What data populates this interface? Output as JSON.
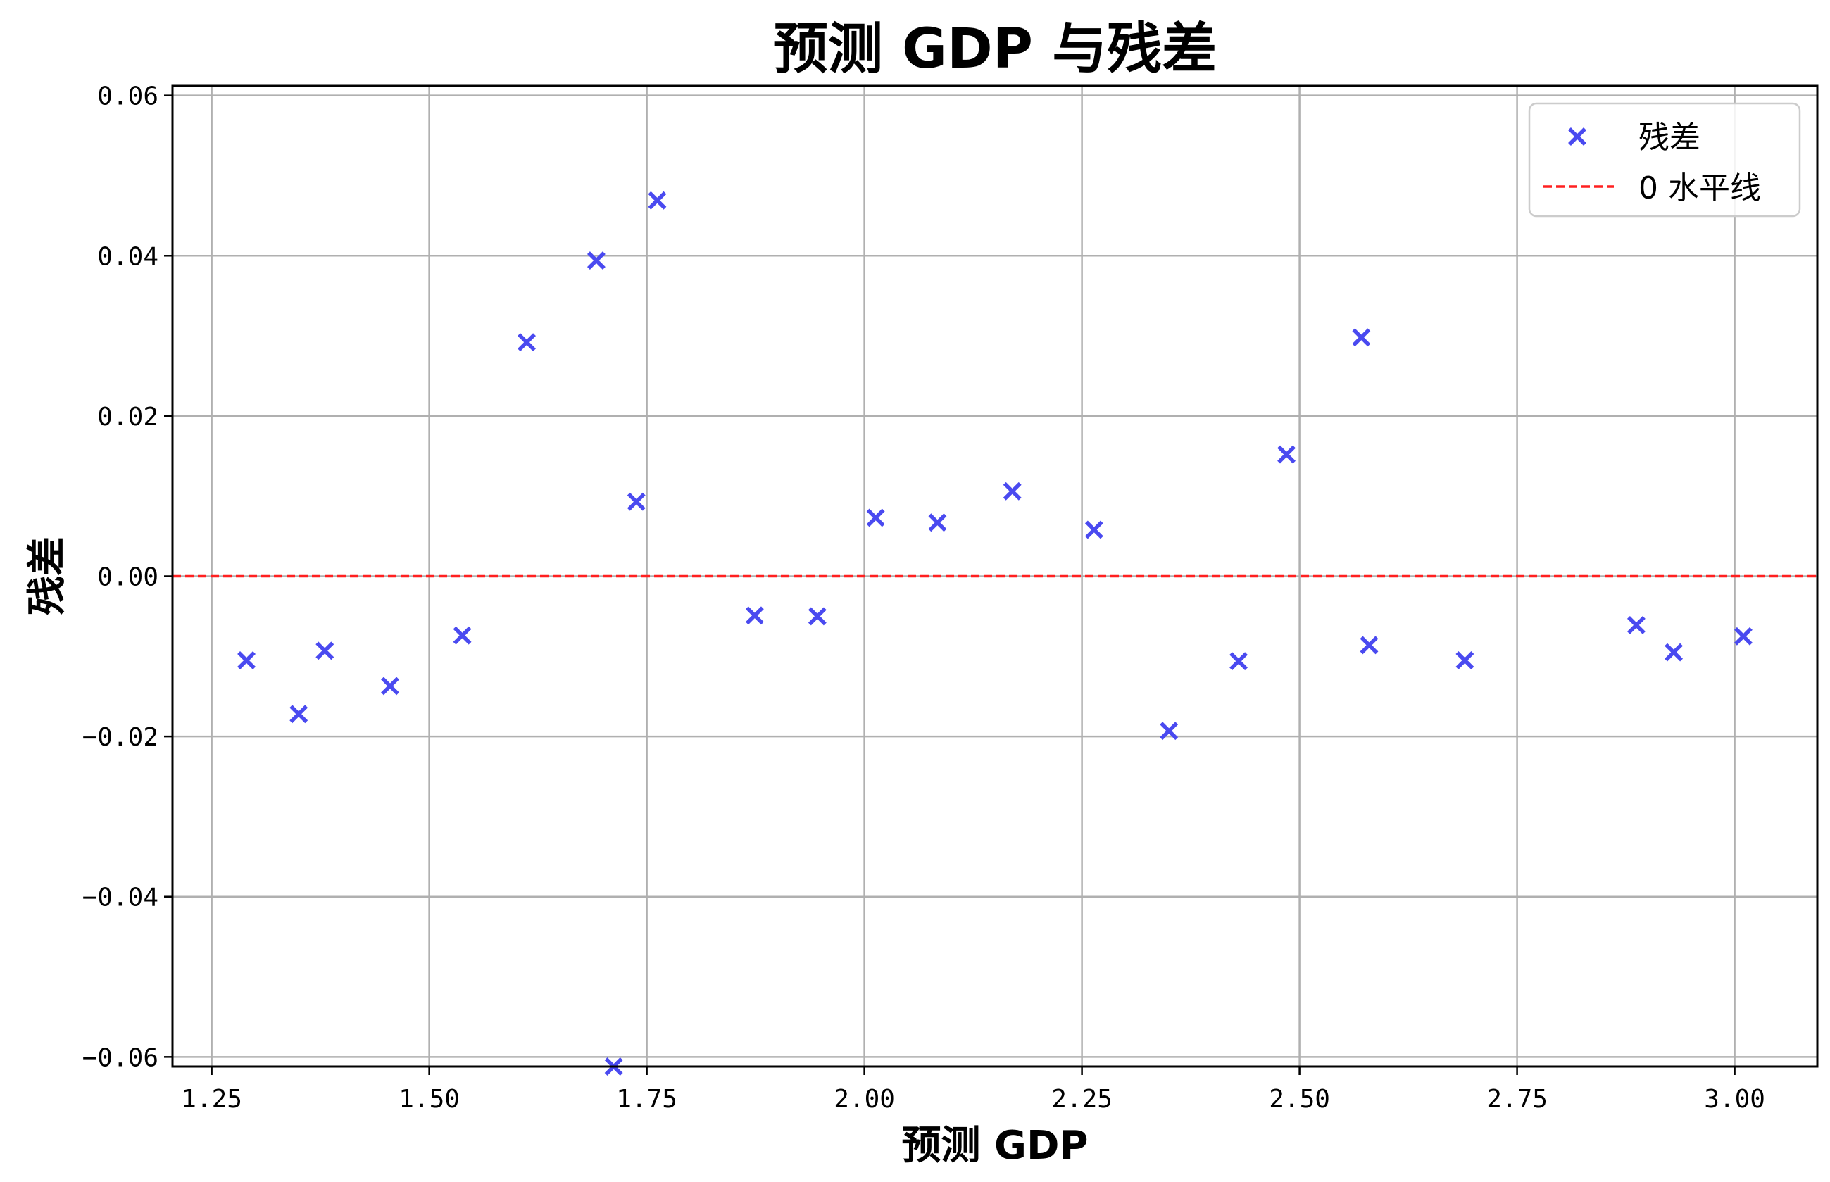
{
  "chart_data": {
    "type": "scatter",
    "title": "预测 GDP 与残差",
    "xlabel": "预测 GDP",
    "ylabel": "残差",
    "xlim": [
      1.205,
      3.095
    ],
    "ylim": [
      -0.0612,
      0.0612
    ],
    "x_ticks": [
      1.25,
      1.5,
      1.75,
      2.0,
      2.25,
      2.5,
      2.75,
      3.0
    ],
    "x_tick_labels": [
      "1.25",
      "1.50",
      "1.75",
      "2.00",
      "2.25",
      "2.50",
      "2.75",
      "3.00"
    ],
    "y_ticks": [
      -0.06,
      -0.04,
      -0.02,
      0.0,
      0.02,
      0.04,
      0.06
    ],
    "y_tick_labels": [
      "−0.06",
      "−0.04",
      "−0.02",
      "0.00",
      "0.02",
      "0.04",
      "0.06"
    ],
    "grid": true,
    "legend_position": "top-right",
    "series": [
      {
        "name": "残差",
        "kind": "scatter",
        "marker": "x",
        "color": "#4a4af0",
        "points": [
          [
            1.29,
            -0.0105
          ],
          [
            1.35,
            -0.0172
          ],
          [
            1.38,
            -0.0093
          ],
          [
            1.455,
            -0.0137
          ],
          [
            1.538,
            -0.0074
          ],
          [
            1.612,
            0.0292
          ],
          [
            1.692,
            0.0394
          ],
          [
            1.712,
            -0.0612
          ],
          [
            1.738,
            0.0093
          ],
          [
            1.762,
            0.0469
          ],
          [
            1.874,
            -0.0049
          ],
          [
            1.946,
            -0.005
          ],
          [
            2.013,
            0.0073
          ],
          [
            2.084,
            0.0067
          ],
          [
            2.17,
            0.0106
          ],
          [
            2.264,
            0.0058
          ],
          [
            2.35,
            -0.0193
          ],
          [
            2.43,
            -0.0106
          ],
          [
            2.485,
            0.0152
          ],
          [
            2.571,
            0.0298
          ],
          [
            2.58,
            -0.0086
          ],
          [
            2.69,
            -0.0105
          ],
          [
            2.887,
            -0.0061
          ],
          [
            2.93,
            -0.0095
          ],
          [
            3.01,
            -0.0075
          ]
        ]
      },
      {
        "name": "0 水平线",
        "kind": "hline",
        "y": 0,
        "color": "#ff2020",
        "style": "dashed"
      }
    ]
  }
}
